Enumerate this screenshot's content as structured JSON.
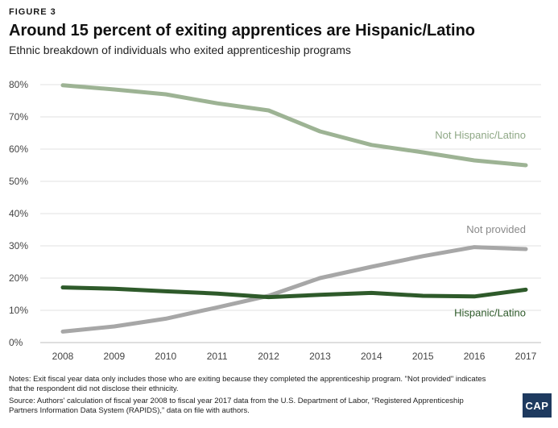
{
  "header": {
    "figure_label": "FIGURE 3",
    "title": "Around 15 percent of exiting apprentices are Hispanic/Latino",
    "subtitle": "Ethnic breakdown of individuals who exited apprenticeship programs"
  },
  "footer": {
    "notes": "Notes: Exit fiscal year data only includes those who are exiting because they completed the apprenticeship program. \"Not provided\" indicates that the respondent did not disclose their ethnicity.",
    "source": "Source: Authors' calculation of fiscal year 2008 to fiscal year 2017 data from the U.S. Department of Labor, “Registered Apprenticeship Partners Information Data System (RAPIDS),” data on file with authors.",
    "logo_text": "CAP"
  },
  "chart_data": {
    "type": "line",
    "title": "Around 15 percent of exiting apprentices are Hispanic/Latino",
    "subtitle": "Ethnic breakdown of individuals who exited apprenticeship programs",
    "x": [
      "2008",
      "2009",
      "2010",
      "2011",
      "2012",
      "2013",
      "2014",
      "2015",
      "2016",
      "2017"
    ],
    "xlabel": "",
    "ylabel": "",
    "ylim": [
      0,
      80
    ],
    "y_ticks": [
      "0%",
      "10%",
      "20%",
      "30%",
      "40%",
      "50%",
      "60%",
      "70%",
      "80%"
    ],
    "grid": true,
    "series": [
      {
        "name": "Not Hispanic/Latino",
        "color": "#9db394",
        "values": [
          79.8,
          78.5,
          77.0,
          74.2,
          72.0,
          65.5,
          61.3,
          59.0,
          56.5,
          55.0
        ]
      },
      {
        "name": "Not provided",
        "color": "#a7a7a7",
        "values": [
          3.4,
          5.0,
          7.4,
          10.9,
          14.5,
          20.0,
          23.5,
          26.8,
          29.6,
          29.0
        ]
      },
      {
        "name": "Hispanic/Latino",
        "color": "#2e5a2a",
        "values": [
          17.1,
          16.7,
          15.9,
          15.2,
          14.1,
          14.8,
          15.4,
          14.5,
          14.3,
          16.4
        ]
      }
    ]
  }
}
